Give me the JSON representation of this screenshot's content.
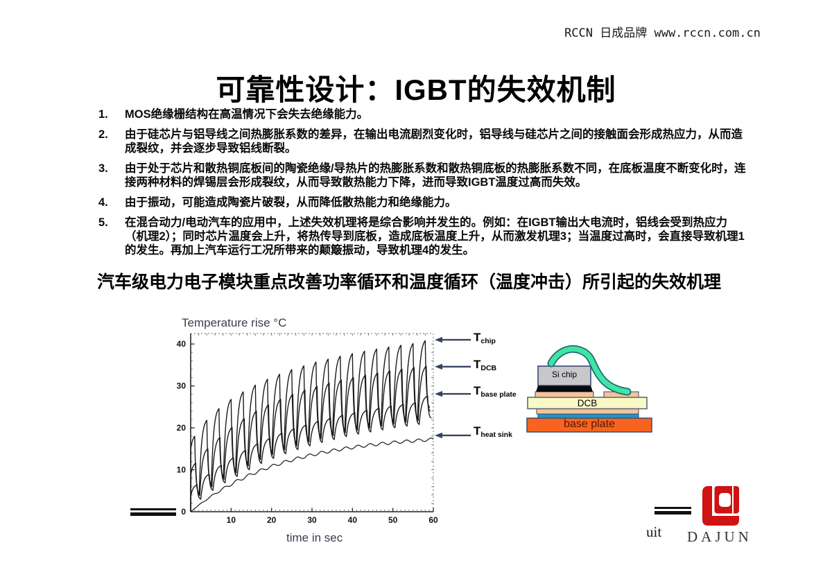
{
  "header": {
    "brand": "RCCN 日成品牌 www.rccn.com.cn"
  },
  "title": "可靠性设计：IGBT的失效机制",
  "list": {
    "items": [
      {
        "num": "1.",
        "text": "MOS绝缘栅结构在高温情况下会失去绝缘能力。"
      },
      {
        "num": "2.",
        "text": "由于硅芯片与铝导线之间热膨胀系数的差异，在输出电流剧烈变化时，铝导线与硅芯片之间的接触面会形成热应力，从而造成裂纹，并会逐步导致铝线断裂。"
      },
      {
        "num": "3.",
        "text": "由于处于芯片和散热铜底板间的陶瓷绝缘/导热片的热膨胀系数和散热铜底板的热膨胀系数不同，在底板温度不断变化时，连接两种材料的焊锡层会形成裂纹，从而导致散热能力下降，进而导致IGBT温度过高而失效。"
      },
      {
        "num": "4.",
        "text": "由于振动，可能造成陶瓷片破裂，从而降低散热能力和绝缘能力。"
      },
      {
        "num": "5.",
        "text": "在混合动力/电动汽车的应用中，上述失效机理将是综合影响并发生的。例如：在IGBT输出大电流时，铝线会受到热应力（机理2）；同时芯片温度会上升，将热传导到底板，造成底板温度上升，从而激发机理3；当温度过高时，会直接导致机理1的发生。再加上汽车运行工况所带来的颠簸振动，导致机理4的发生。"
      }
    ]
  },
  "emphasis": "汽车级电力电子模块重点改善功率循环和温度循环（温度冲击）所引起的失效机理",
  "chart_data": {
    "type": "line",
    "title": "",
    "ylabel": "Temperature rise °C",
    "xlabel": "time in sec",
    "xlim": [
      0,
      60
    ],
    "ylim": [
      0,
      42.5
    ],
    "xticks": [
      10,
      20,
      30,
      40,
      50,
      60
    ],
    "yticks": [
      0,
      10,
      20,
      30,
      40
    ],
    "grid": false,
    "period_sec": 3,
    "curve_color": "#1a1a1a",
    "frame_color": "#222222",
    "minor_tick_color": "#666666",
    "series": [
      {
        "name": "T_chip",
        "style": "sawtooth",
        "start": -0.9,
        "rise": 1.9,
        "peaks": [
          18.0,
          21.8,
          24.6,
          26.8,
          28.6,
          30.2,
          31.6,
          32.8,
          33.9,
          34.8,
          35.7,
          36.4,
          37.1,
          37.7,
          38.3,
          38.8,
          39.3,
          39.7,
          40.1,
          40.8
        ],
        "valleys": [
          4.2,
          6.4,
          8.2,
          9.6,
          11.3,
          12.8,
          14.0,
          15.1,
          16.1,
          17.0,
          17.8,
          18.5,
          19.2,
          19.8,
          20.4,
          20.9,
          21.4,
          21.8,
          22.2,
          24.6
        ]
      },
      {
        "name": "T_DCB",
        "style": "sawtooth",
        "start": -0.75,
        "rise": 2.0,
        "peaks": [
          11.6,
          15.0,
          17.7,
          20.1,
          22.2,
          24.0,
          25.5,
          26.8,
          28.0,
          29.0,
          29.9,
          30.7,
          31.4,
          32.0,
          32.6,
          33.1,
          33.6,
          34.0,
          34.4,
          34.7
        ],
        "valleys": [
          3.8,
          5.9,
          7.7,
          9.2,
          10.9,
          12.4,
          13.6,
          14.7,
          15.7,
          16.6,
          17.4,
          18.1,
          18.8,
          19.4,
          19.9,
          20.4,
          20.9,
          21.3,
          21.7,
          23.8
        ]
      },
      {
        "name": "T_base_plate",
        "style": "sawtooth",
        "start": -0.5,
        "rise": 2.1,
        "peaks": [
          6.4,
          8.9,
          11.0,
          12.8,
          14.6,
          16.2,
          17.5,
          18.7,
          19.8,
          20.7,
          21.6,
          22.3,
          23.0,
          23.6,
          24.2,
          24.7,
          25.2,
          25.6,
          26.0,
          27.6
        ],
        "valleys": [
          3.0,
          5.1,
          6.9,
          8.4,
          10.0,
          11.5,
          12.7,
          13.8,
          14.8,
          15.7,
          16.5,
          17.2,
          17.9,
          18.5,
          19.0,
          19.5,
          20.0,
          20.4,
          20.8,
          22.3
        ]
      },
      {
        "name": "T_heat_sink",
        "style": "smooth",
        "asymptote": 18.6,
        "tau": 23,
        "ripple": 0.35
      }
    ],
    "annotations": [
      {
        "main": "T",
        "sub": "chip",
        "value": 41.0
      },
      {
        "main": "T",
        "sub": "DCB",
        "value": 34.6
      },
      {
        "main": "T",
        "sub": "base plate",
        "value": 28.1
      },
      {
        "main": "T",
        "sub": "heat sink",
        "value": 18.2
      }
    ],
    "arrow_color": "#36425f"
  },
  "diagram": {
    "labels": {
      "si_chip": "Si chip",
      "dcb": "DCB",
      "base_plate": "base plate"
    },
    "colors": {
      "wire": "#40e5a3",
      "wire_outline": "#1b6a74",
      "chip": "#c8c8ca",
      "chip_outline": "#2e3f6e",
      "solder_black": "#06090e",
      "copper": "#f4c498",
      "dcb": "#f9f9c5",
      "dcb_outline": "#555f78",
      "solder_blue": "#1e95c5",
      "base_plate": "#f96320",
      "outline": "#3a4a6e"
    }
  },
  "footer": {
    "fragment": "uit",
    "logo_text": "DAJUN",
    "logo_red": "#cf1212"
  }
}
